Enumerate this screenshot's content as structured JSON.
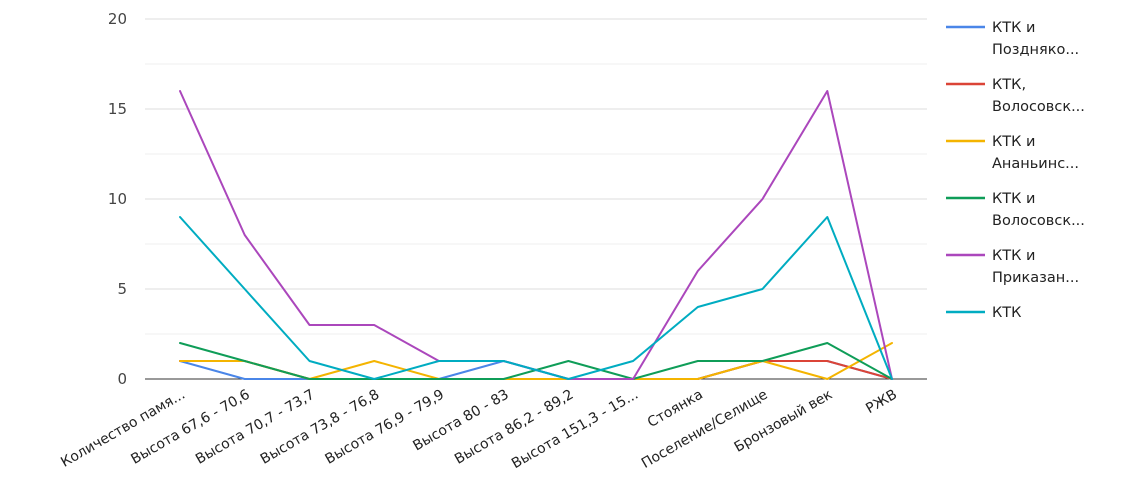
{
  "chart_data": {
    "type": "line",
    "title": "",
    "xlabel": "",
    "ylabel": "",
    "ylim": [
      0,
      20
    ],
    "yticks": [
      0,
      5,
      10,
      15,
      20
    ],
    "grid": true,
    "legend_position": "right",
    "categories": [
      "Количество памя...",
      "Высота 67,6 - 70,6",
      "Высота 70,7 - 73,7",
      "Высота 73,8 - 76,8",
      "Высота 76,9 - 79,9",
      "Высота 80 - 83",
      "Высота 86,2 - 89,2",
      "Высота 151,3 - 15...",
      "Стоянка",
      "Поселение/Селище",
      "Бронзовый век",
      "РЖВ"
    ],
    "series": [
      {
        "name": "КТК и Позднякo...",
        "legend_lines": [
          "КТК и",
          "Поздняко..."
        ],
        "color": "#4a86e8",
        "values": [
          1,
          0,
          0,
          0,
          0,
          1,
          0,
          0,
          0,
          1,
          1,
          0
        ]
      },
      {
        "name": "КТК, Волосовск...",
        "legend_lines": [
          "КТК,",
          "Волосовск..."
        ],
        "color": "#db4437",
        "values": [
          1,
          1,
          0,
          0,
          0,
          0,
          0,
          0,
          0,
          1,
          1,
          0
        ]
      },
      {
        "name": "КТК и Ананьинс...",
        "legend_lines": [
          "КТК и",
          "Ананьинс..."
        ],
        "color": "#f4b400",
        "values": [
          1,
          1,
          0,
          1,
          0,
          0,
          0,
          0,
          0,
          1,
          0,
          2
        ]
      },
      {
        "name": "КТК и Волосовск...",
        "legend_lines": [
          "КТК и",
          "Волосовск..."
        ],
        "color": "#0f9d58",
        "values": [
          2,
          1,
          0,
          0,
          0,
          0,
          1,
          0,
          1,
          1,
          2,
          0
        ]
      },
      {
        "name": "КТК и Приказан...",
        "legend_lines": [
          "КТК и",
          "Приказан..."
        ],
        "color": "#ab47bc",
        "values": [
          16,
          8,
          3,
          3,
          1,
          1,
          0,
          0,
          6,
          10,
          16,
          0
        ]
      },
      {
        "name": "КТК",
        "legend_lines": [
          "КТК"
        ],
        "color": "#00acc1",
        "values": [
          9,
          5,
          1,
          0,
          1,
          1,
          0,
          1,
          4,
          5,
          9,
          0
        ]
      }
    ]
  }
}
